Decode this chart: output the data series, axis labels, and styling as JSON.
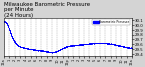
{
  "title": "Milwaukee Barometric Pressure\nper Minute\n(24 Hours)",
  "title_fontsize": 4.0,
  "bg_color": "#d4d4d4",
  "plot_bg_color": "#ffffff",
  "line_color": "#0000ff",
  "marker": ".",
  "marker_size": 1.2,
  "ylim": [
    29.35,
    30.15
  ],
  "yticks": [
    29.4,
    29.5,
    29.6,
    29.7,
    29.8,
    29.9,
    30.0,
    30.1
  ],
  "ylabel_fontsize": 2.8,
  "xlabel_fontsize": 2.5,
  "legend_label": "Barometric Pressure",
  "legend_color": "#0000ff",
  "grid_color": "#999999",
  "grid_style": "--",
  "num_points": 1440,
  "x_start": 0,
  "x_end": 1440,
  "xtick_positions": [
    0,
    60,
    120,
    180,
    240,
    300,
    360,
    420,
    480,
    540,
    600,
    660,
    720,
    780,
    840,
    900,
    960,
    1020,
    1080,
    1140,
    1200,
    1260,
    1320,
    1380,
    1440
  ],
  "xtick_labels": [
    "12a",
    "1",
    "2",
    "3",
    "4",
    "5",
    "6",
    "7",
    "8",
    "9",
    "10",
    "11",
    "12p",
    "1",
    "2",
    "3",
    "4",
    "5",
    "6",
    "7",
    "8",
    "9",
    "10",
    "11",
    "12a"
  ],
  "curve_points": [
    [
      0,
      30.08
    ],
    [
      30,
      30.05
    ],
    [
      60,
      29.9
    ],
    [
      90,
      29.75
    ],
    [
      120,
      29.65
    ],
    [
      150,
      29.58
    ],
    [
      180,
      29.55
    ],
    [
      240,
      29.52
    ],
    [
      300,
      29.5
    ],
    [
      360,
      29.48
    ],
    [
      420,
      29.47
    ],
    [
      450,
      29.46
    ],
    [
      480,
      29.45
    ],
    [
      510,
      29.44
    ],
    [
      540,
      29.43
    ],
    [
      570,
      29.44
    ],
    [
      600,
      29.46
    ],
    [
      630,
      29.49
    ],
    [
      660,
      29.52
    ],
    [
      700,
      29.55
    ],
    [
      750,
      29.57
    ],
    [
      800,
      29.58
    ],
    [
      850,
      29.59
    ],
    [
      900,
      29.6
    ],
    [
      950,
      29.61
    ],
    [
      1000,
      29.62
    ],
    [
      1050,
      29.62
    ],
    [
      1100,
      29.63
    ],
    [
      1150,
      29.62
    ],
    [
      1200,
      29.61
    ],
    [
      1250,
      29.59
    ],
    [
      1300,
      29.57
    ],
    [
      1350,
      29.55
    ],
    [
      1400,
      29.53
    ],
    [
      1440,
      29.52
    ]
  ]
}
